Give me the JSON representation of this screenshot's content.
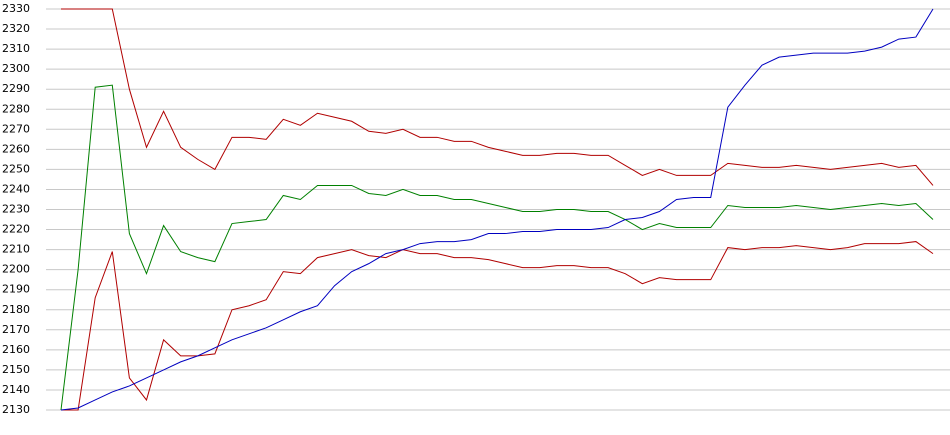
{
  "chart_data": {
    "type": "line",
    "categories": [
      null,
      null,
      null,
      null,
      null,
      null,
      null,
      null,
      null,
      null,
      null,
      null,
      null,
      null,
      null,
      null,
      null,
      null,
      null,
      null,
      null,
      null,
      null,
      null,
      null,
      null,
      null,
      null,
      null,
      null,
      null,
      null,
      null,
      null,
      null,
      null,
      null,
      null,
      null,
      null,
      null,
      null,
      null,
      null,
      null,
      null,
      null,
      null,
      null,
      null,
      null,
      null
    ],
    "series": [
      {
        "color": "#b00000",
        "values": [
          2330,
          2330,
          2330,
          2330,
          2290,
          2261,
          2279,
          2261,
          2255,
          2250,
          2266,
          2266,
          2265,
          2275,
          2272,
          2278,
          2276,
          2274,
          2269,
          2268,
          2270,
          2266,
          2266,
          2264,
          2264,
          2261,
          2259,
          2257,
          2257,
          2258,
          2258,
          2257,
          2257,
          2252,
          2247,
          2250,
          2247,
          2247,
          2247,
          2253,
          2252,
          2251,
          2251,
          2252,
          2251,
          2250,
          2251,
          2252,
          2253,
          2251,
          2252,
          2242
        ]
      },
      {
        "color": "#008000",
        "values": [
          2130,
          2200,
          2291,
          2292,
          2218,
          2198,
          2222,
          2209,
          2206,
          2204,
          2223,
          2224,
          2225,
          2237,
          2235,
          2242,
          2242,
          2242,
          2238,
          2237,
          2240,
          2237,
          2237,
          2235,
          2235,
          2233,
          2231,
          2229,
          2229,
          2230,
          2230,
          2229,
          2229,
          2225,
          2220,
          2223,
          2221,
          2221,
          2221,
          2232,
          2231,
          2231,
          2231,
          2232,
          2231,
          2230,
          2231,
          2232,
          2233,
          2232,
          2233,
          2225
        ]
      },
      {
        "color": "#b00000",
        "values": [
          2130,
          2130,
          2186,
          2209,
          2146,
          2135,
          2165,
          2157,
          2157,
          2158,
          2180,
          2182,
          2185,
          2199,
          2198,
          2206,
          2208,
          2210,
          2207,
          2206,
          2210,
          2208,
          2208,
          2206,
          2206,
          2205,
          2203,
          2201,
          2201,
          2202,
          2202,
          2201,
          2201,
          2198,
          2193,
          2196,
          2195,
          2195,
          2195,
          2211,
          2210,
          2211,
          2211,
          2212,
          2211,
          2210,
          2211,
          2213,
          2213,
          2213,
          2214,
          2208
        ]
      },
      {
        "color": "#0000c0",
        "values": [
          2130,
          2131,
          2135,
          2139,
          2142,
          2146,
          2150,
          2154,
          2157,
          2161,
          2165,
          2168,
          2171,
          2175,
          2179,
          2182,
          2192,
          2199,
          2203,
          2208,
          2210,
          2213,
          2214,
          2214,
          2215,
          2218,
          2218,
          2219,
          2219,
          2220,
          2220,
          2220,
          2221,
          2225,
          2226,
          2229,
          2235,
          2236,
          2236,
          2281,
          2292,
          2302,
          2306,
          2307,
          2308,
          2308,
          2308,
          2309,
          2311,
          2315,
          2316,
          2330
        ]
      }
    ],
    "ylim": [
      2130,
      2330
    ],
    "yticks": [
      2130,
      2140,
      2150,
      2160,
      2170,
      2180,
      2190,
      2200,
      2210,
      2220,
      2230,
      2240,
      2250,
      2260,
      2270,
      2280,
      2290,
      2300,
      2310,
      2320,
      2330
    ],
    "grid": true
  }
}
